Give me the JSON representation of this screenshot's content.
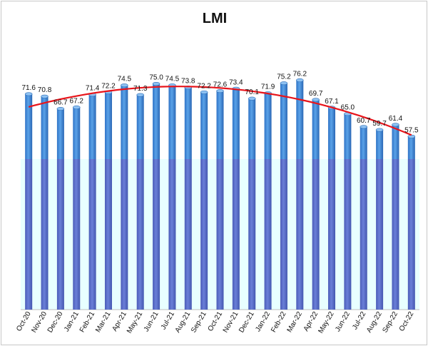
{
  "chart_data": {
    "type": "bar",
    "title": "LMI",
    "categories": [
      "Oct-20",
      "Nov-20",
      "Dec-20",
      "Jan-21",
      "Feb-21",
      "Mar-21",
      "Apr-21",
      "May-21",
      "Jun-21",
      "Jul-21",
      "Aug-21",
      "Sep-21",
      "Oct-21",
      "Nov-21",
      "Dec-21",
      "Jan-22",
      "Feb-22",
      "Mar-22",
      "Apr-22",
      "May-22",
      "Jun-22",
      "Jul-22",
      "Aug-22",
      "Sep-22",
      "Oct-22"
    ],
    "values": [
      71.6,
      70.8,
      66.7,
      67.2,
      71.4,
      72.2,
      74.5,
      71.3,
      75.0,
      74.5,
      73.8,
      72.2,
      72.6,
      73.4,
      70.1,
      71.9,
      75.2,
      76.2,
      69.7,
      67.1,
      65.0,
      60.7,
      59.7,
      61.4,
      57.5
    ],
    "trendline": true,
    "ylim": [
      0,
      80
    ],
    "reference_line": 50,
    "show_data_labels": true,
    "grid": false,
    "legend": "none",
    "colors": {
      "bar_top": "#4a90d9",
      "bar_bottom": "#5b6fc8",
      "bar_edge": "#2f6fb8",
      "trend": "#e8141a",
      "lower_band": "#e8ffff"
    }
  }
}
